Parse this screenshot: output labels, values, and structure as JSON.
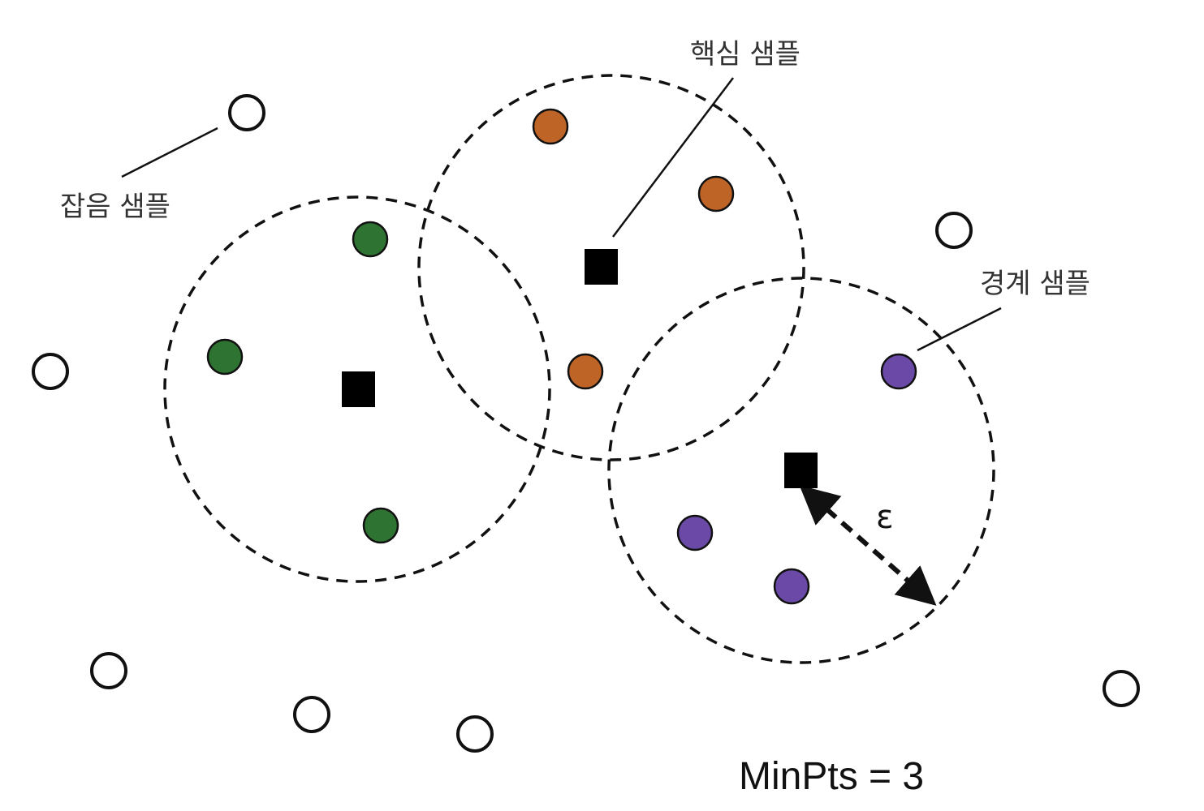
{
  "labels": {
    "noise": "잡음 샘플",
    "core": "핵심 샘플",
    "border": "경계 샘플",
    "epsilon": "ε",
    "minpts": "MinPts = 3"
  },
  "colors": {
    "cluster_green": "#2e7331",
    "cluster_orange": "#bf6427",
    "cluster_purple": "#6a4aa6",
    "core_marker": "#000000",
    "noise_fill": "#ffffff",
    "outline": "#111111"
  }
}
